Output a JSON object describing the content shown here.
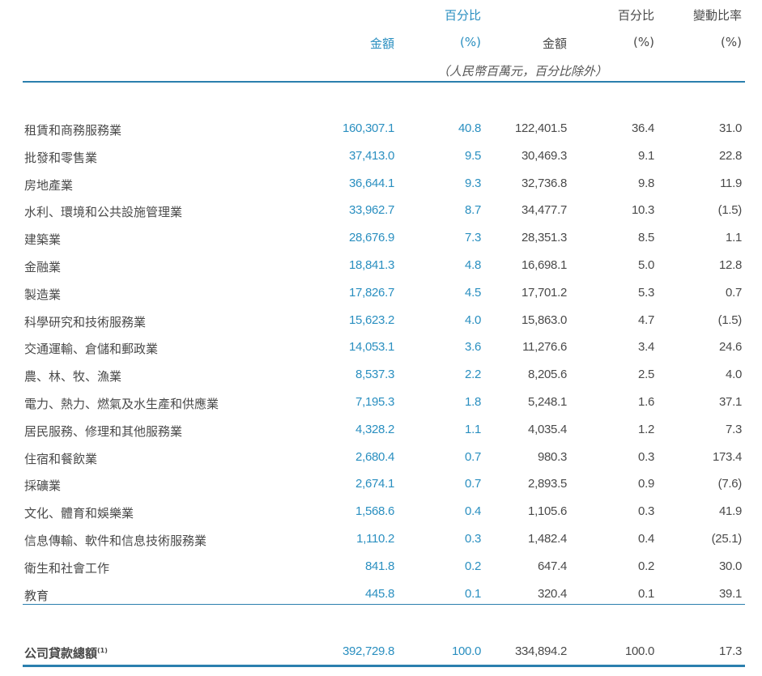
{
  "header": {
    "col1": {
      "line1": "",
      "line2": "金額"
    },
    "col2": {
      "line1": "百分比",
      "line2": "(%)"
    },
    "col3": {
      "line1": "",
      "line2": "金額"
    },
    "col4": {
      "line1": "百分比",
      "line2": "(%)"
    },
    "col5": {
      "line1": "變動比率",
      "line2": "(%)"
    },
    "unit_note": "（人民幣百萬元，百分比除外）"
  },
  "colors": {
    "accent": "#2a8fc0",
    "text": "#4a4a4a",
    "rule": "#2b7fae"
  },
  "rows": [
    {
      "label": "租賃和商務服務業",
      "v1": "160,307.1",
      "v2": "40.8",
      "v3": "122,401.5",
      "v4": "36.4",
      "v5": "31.0"
    },
    {
      "label": "批發和零售業",
      "v1": "37,413.0",
      "v2": "9.5",
      "v3": "30,469.3",
      "v4": "9.1",
      "v5": "22.8"
    },
    {
      "label": "房地產業",
      "v1": "36,644.1",
      "v2": "9.3",
      "v3": "32,736.8",
      "v4": "9.8",
      "v5": "11.9"
    },
    {
      "label": "水利、環境和公共設施管理業",
      "v1": "33,962.7",
      "v2": "8.7",
      "v3": "34,477.7",
      "v4": "10.3",
      "v5": "(1.5)"
    },
    {
      "label": "建築業",
      "v1": "28,676.9",
      "v2": "7.3",
      "v3": "28,351.3",
      "v4": "8.5",
      "v5": "1.1"
    },
    {
      "label": "金融業",
      "v1": "18,841.3",
      "v2": "4.8",
      "v3": "16,698.1",
      "v4": "5.0",
      "v5": "12.8"
    },
    {
      "label": "製造業",
      "v1": "17,826.7",
      "v2": "4.5",
      "v3": "17,701.2",
      "v4": "5.3",
      "v5": "0.7"
    },
    {
      "label": "科學研究和技術服務業",
      "v1": "15,623.2",
      "v2": "4.0",
      "v3": "15,863.0",
      "v4": "4.7",
      "v5": "(1.5)"
    },
    {
      "label": "交通運輸、倉儲和郵政業",
      "v1": "14,053.1",
      "v2": "3.6",
      "v3": "11,276.6",
      "v4": "3.4",
      "v5": "24.6"
    },
    {
      "label": "農、林、牧、漁業",
      "v1": "8,537.3",
      "v2": "2.2",
      "v3": "8,205.6",
      "v4": "2.5",
      "v5": "4.0"
    },
    {
      "label": "電力、熱力、燃氣及水生產和供應業",
      "v1": "7,195.3",
      "v2": "1.8",
      "v3": "5,248.1",
      "v4": "1.6",
      "v5": "37.1"
    },
    {
      "label": "居民服務、修理和其他服務業",
      "v1": "4,328.2",
      "v2": "1.1",
      "v3": "4,035.4",
      "v4": "1.2",
      "v5": "7.3"
    },
    {
      "label": "住宿和餐飲業",
      "v1": "2,680.4",
      "v2": "0.7",
      "v3": "980.3",
      "v4": "0.3",
      "v5": "173.4"
    },
    {
      "label": "採礦業",
      "v1": "2,674.1",
      "v2": "0.7",
      "v3": "2,893.5",
      "v4": "0.9",
      "v5": "(7.6)"
    },
    {
      "label": "文化、體育和娛樂業",
      "v1": "1,568.6",
      "v2": "0.4",
      "v3": "1,105.6",
      "v4": "0.3",
      "v5": "41.9"
    },
    {
      "label": "信息傳輸、軟件和信息技術服務業",
      "v1": "1,110.2",
      "v2": "0.3",
      "v3": "1,482.4",
      "v4": "0.4",
      "v5": "(25.1)"
    },
    {
      "label": "衛生和社會工作",
      "v1": "841.8",
      "v2": "0.2",
      "v3": "647.4",
      "v4": "0.2",
      "v5": "30.0"
    },
    {
      "label": "教育",
      "v1": "445.8",
      "v2": "0.1",
      "v3": "320.4",
      "v4": "0.1",
      "v5": "39.1"
    }
  ],
  "total": {
    "label": "公司貸款總額",
    "note": "(1)",
    "v1": "392,729.8",
    "v2": "100.0",
    "v3": "334,894.2",
    "v4": "100.0",
    "v5": "17.3"
  }
}
